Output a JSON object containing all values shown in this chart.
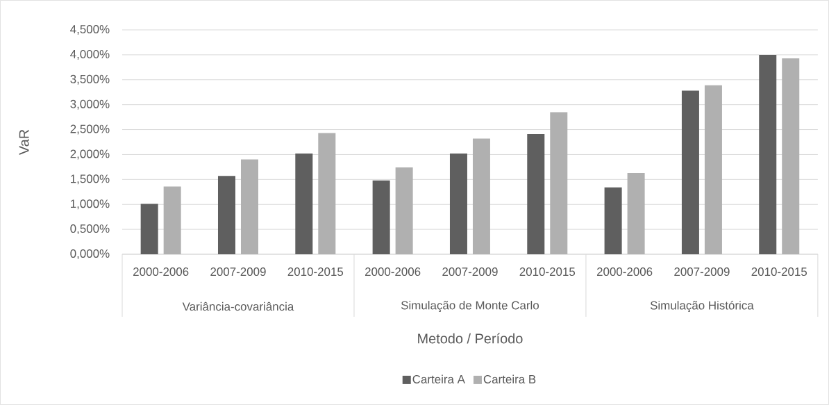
{
  "chart_data": {
    "type": "bar",
    "xlabel": "Metodo / Período",
    "ylabel": "VaR",
    "categories": [
      "2000-2006",
      "2007-2009",
      "2010-2015",
      "2000-2006",
      "2007-2009",
      "2010-2015",
      "2000-2006",
      "2007-2009",
      "2010-2015"
    ],
    "annotations": [
      "Variância-covariância",
      "Simulação de Monte Carlo",
      "Simulação Histórica"
    ],
    "series": [
      {
        "name": "Carteira A",
        "color": "#5f5f5f",
        "values": [
          1.01,
          1.57,
          2.02,
          1.48,
          2.02,
          2.41,
          1.34,
          3.28,
          4.0
        ]
      },
      {
        "name": "Carteira B",
        "color": "#b0b0b0",
        "values": [
          1.36,
          1.9,
          2.43,
          1.74,
          2.32,
          2.85,
          1.63,
          3.39,
          3.93
        ]
      }
    ],
    "ylim": [
      0,
      4.5
    ],
    "yticks": [
      {
        "value": 0,
        "label": "0,000%"
      },
      {
        "value": 0.5,
        "label": "0,500%"
      },
      {
        "value": 1,
        "label": "1,000%"
      },
      {
        "value": 1.5,
        "label": "1,500%"
      },
      {
        "value": 2,
        "label": "2,000%"
      },
      {
        "value": 2.5,
        "label": "2,500%"
      },
      {
        "value": 3,
        "label": "3,000%"
      },
      {
        "value": 3.5,
        "label": "3,500%"
      },
      {
        "value": 4,
        "label": "4,000%"
      },
      {
        "value": 4.5,
        "label": "4,500%"
      }
    ],
    "grid": "y",
    "legend": "bottom"
  }
}
